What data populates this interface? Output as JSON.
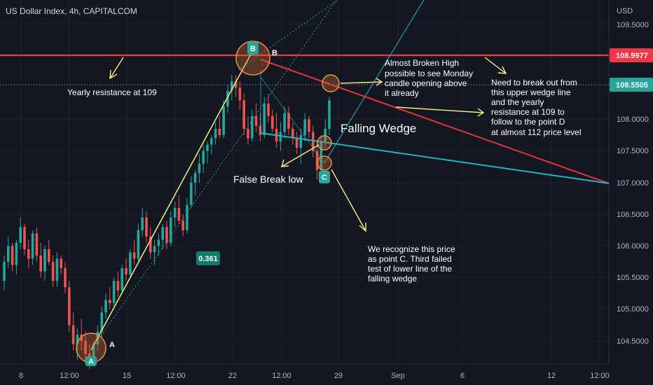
{
  "header": {
    "symbol_title": "US Dollar Index, 4h, CAPITALCOM",
    "currency": "USD"
  },
  "colors": {
    "background": "#131722",
    "grid": "#1e222d",
    "up_candle": "#26a69a",
    "down_candle": "#ef5350",
    "resistance": "#f23645",
    "upper_wedge": "#e8323f",
    "lower_wedge": "#22b5bf",
    "impulse_line": "#e6e67a",
    "channel_line": "#26a69a",
    "arrow": "#ffeb8a",
    "circle_fill": "#d66a2a",
    "circle_stroke": "#f0904a"
  },
  "chart_data": {
    "type": "candlestick",
    "y_axis": {
      "range": [
        104.2,
        110.0
      ],
      "ticks": [
        "109.5000",
        "109.0000",
        "108.0000",
        "107.5000",
        "107.0000",
        "106.5000",
        "106.0000",
        "105.5000",
        "105.0000",
        "104.5000"
      ],
      "scale": "linear"
    },
    "x_axis": {
      "ticks": [
        "8",
        "12:00",
        "15",
        "12:00",
        "22",
        "12:00",
        "29",
        "Sep",
        "6",
        "12",
        "12:00"
      ]
    },
    "price_labels": [
      {
        "text": "108.9977",
        "value": 108.9977,
        "role": "resistance"
      },
      {
        "text": "108.5505",
        "value": 108.5505,
        "role": "last_price"
      }
    ],
    "candles": [
      [
        105.7,
        106.1,
        105.55,
        106.0
      ],
      [
        106.0,
        106.4,
        105.9,
        106.25
      ],
      [
        106.25,
        106.3,
        105.85,
        105.95
      ],
      [
        105.95,
        106.35,
        105.8,
        106.3
      ],
      [
        106.3,
        106.7,
        106.2,
        106.55
      ],
      [
        106.55,
        106.6,
        106.1,
        106.2
      ],
      [
        106.2,
        106.35,
        105.9,
        106.05
      ],
      [
        106.05,
        106.5,
        105.95,
        106.45
      ],
      [
        106.45,
        106.55,
        106.0,
        106.1
      ],
      [
        106.1,
        106.3,
        105.75,
        105.85
      ],
      [
        105.85,
        106.25,
        105.7,
        106.2
      ],
      [
        106.2,
        106.35,
        105.95,
        106.0
      ],
      [
        106.0,
        106.1,
        105.6,
        105.7
      ],
      [
        105.7,
        106.15,
        105.6,
        106.05
      ],
      [
        106.05,
        106.1,
        105.8,
        105.9
      ],
      [
        105.9,
        106.0,
        105.5,
        105.6
      ],
      [
        105.6,
        105.7,
        104.9,
        105.0
      ],
      [
        105.0,
        105.2,
        104.6,
        104.7
      ],
      [
        104.7,
        104.95,
        104.45,
        104.85
      ],
      [
        104.85,
        105.1,
        104.6,
        104.75
      ],
      [
        104.75,
        104.9,
        104.4,
        104.55
      ],
      [
        104.55,
        104.7,
        104.3,
        104.45
      ],
      [
        104.45,
        104.75,
        104.35,
        104.7
      ],
      [
        104.7,
        105.0,
        104.6,
        104.9
      ],
      [
        104.9,
        105.3,
        104.8,
        105.2
      ],
      [
        105.2,
        105.5,
        105.1,
        105.4
      ],
      [
        105.4,
        105.6,
        105.25,
        105.35
      ],
      [
        105.35,
        105.75,
        105.3,
        105.7
      ],
      [
        105.7,
        105.85,
        105.45,
        105.55
      ],
      [
        105.55,
        105.95,
        105.5,
        105.9
      ],
      [
        105.9,
        106.05,
        105.7,
        105.8
      ],
      [
        105.8,
        106.2,
        105.75,
        106.15
      ],
      [
        106.15,
        106.35,
        105.95,
        106.05
      ],
      [
        106.05,
        106.6,
        106.0,
        106.5
      ],
      [
        106.5,
        106.85,
        106.4,
        106.7
      ],
      [
        106.7,
        106.8,
        106.3,
        106.4
      ],
      [
        106.4,
        106.55,
        106.05,
        106.15
      ],
      [
        106.15,
        106.35,
        105.95,
        106.25
      ],
      [
        106.25,
        106.45,
        106.1,
        106.35
      ],
      [
        106.35,
        106.6,
        106.2,
        106.55
      ],
      [
        106.55,
        106.65,
        106.2,
        106.3
      ],
      [
        106.3,
        106.8,
        106.25,
        106.7
      ],
      [
        106.7,
        106.95,
        106.55,
        106.85
      ],
      [
        106.85,
        107.05,
        106.6,
        106.65
      ],
      [
        106.65,
        106.75,
        106.4,
        106.5
      ],
      [
        106.5,
        107.0,
        106.45,
        106.9
      ],
      [
        106.9,
        107.35,
        106.85,
        107.25
      ],
      [
        107.25,
        107.45,
        107.05,
        107.4
      ],
      [
        107.4,
        107.7,
        107.25,
        107.55
      ],
      [
        107.55,
        107.85,
        107.4,
        107.75
      ],
      [
        107.75,
        107.9,
        107.55,
        107.85
      ],
      [
        107.85,
        108.0,
        107.7,
        107.95
      ],
      [
        107.95,
        108.2,
        107.85,
        108.1
      ],
      [
        108.1,
        108.3,
        107.95,
        108.0
      ],
      [
        108.0,
        108.55,
        107.95,
        108.45
      ],
      [
        108.45,
        108.8,
        108.35,
        108.7
      ],
      [
        108.7,
        108.95,
        108.55,
        108.85
      ],
      [
        108.85,
        108.95,
        108.6,
        108.75
      ],
      [
        108.75,
        108.85,
        108.4,
        108.55
      ],
      [
        108.55,
        108.65,
        108.0,
        108.1
      ],
      [
        108.1,
        108.3,
        107.85,
        107.95
      ],
      [
        107.95,
        108.4,
        107.9,
        108.3
      ],
      [
        108.3,
        108.5,
        108.05,
        108.15
      ],
      [
        108.15,
        108.35,
        107.9,
        108.0
      ],
      [
        108.0,
        108.6,
        107.95,
        108.5
      ],
      [
        108.5,
        108.65,
        108.2,
        108.3
      ],
      [
        108.3,
        108.4,
        108.05,
        108.1
      ],
      [
        108.1,
        108.35,
        107.8,
        107.9
      ],
      [
        107.9,
        108.2,
        107.75,
        108.05
      ],
      [
        108.05,
        108.45,
        107.95,
        108.35
      ],
      [
        108.35,
        108.45,
        108.0,
        108.1
      ],
      [
        108.1,
        108.2,
        107.85,
        107.95
      ],
      [
        107.95,
        108.05,
        107.7,
        107.8
      ],
      [
        107.8,
        108.1,
        107.55,
        108.0
      ],
      [
        108.0,
        108.35,
        107.9,
        108.25
      ],
      [
        108.25,
        108.3,
        107.95,
        108.05
      ],
      [
        108.05,
        108.15,
        107.65,
        107.75
      ],
      [
        107.75,
        107.9,
        107.3,
        107.45
      ],
      [
        107.45,
        108.0,
        107.4,
        107.9
      ],
      [
        107.9,
        108.25,
        107.8,
        108.1
      ],
      [
        108.1,
        108.6,
        108.0,
        108.55
      ]
    ],
    "drawings": {
      "resistance_level": 108.9977,
      "points": [
        {
          "label": "A",
          "value": 104.3
        },
        {
          "label": "B",
          "value": 108.95
        },
        {
          "label": "C",
          "value": 107.3
        }
      ],
      "fib_badge": "0.361",
      "wedge_name": "Falling Wedge"
    },
    "annotations": {
      "yearly_resistance": "Yearly resistance at 109",
      "almost_broken_high": [
        "Almost Broken High",
        "possible to see Monday",
        "candle opening above",
        "it already"
      ],
      "need_to_break": [
        "Need to break out from",
        "this upper wedge line",
        "and the yearly",
        "resistance at 109 to",
        "follow to the point D",
        "at almost 112 price level"
      ],
      "false_break": "False Break low",
      "recognize_c": [
        "We recognize this price",
        "as point C. Third failed",
        "test of lower line of the",
        "falling wedge"
      ]
    }
  }
}
